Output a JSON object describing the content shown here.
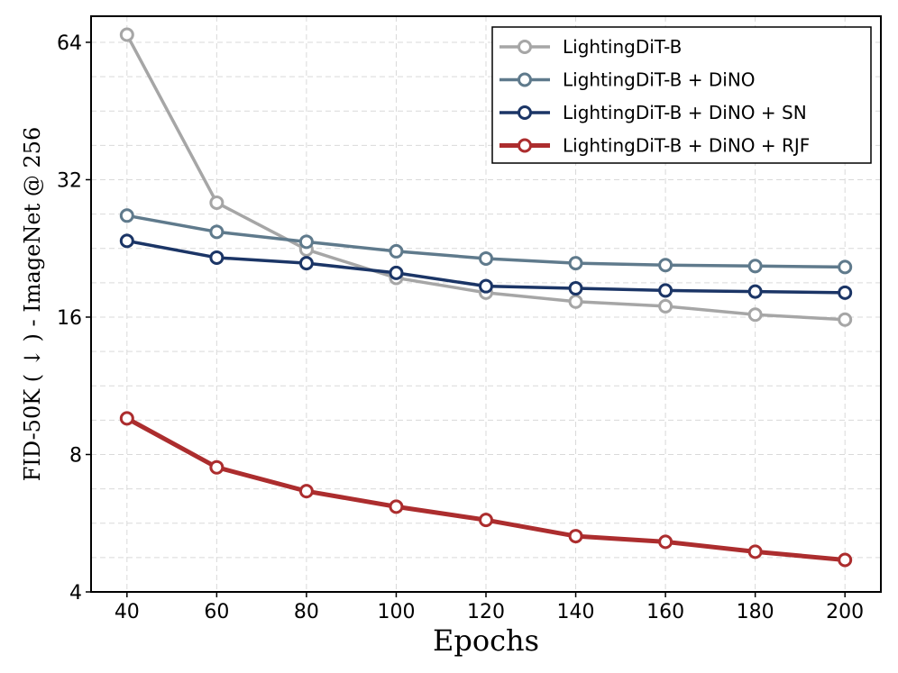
{
  "chart_data": {
    "type": "line",
    "title": "",
    "xlabel": "Epochs",
    "ylabel": "FID-50K ( ↓ ) - ImageNet @ 256",
    "x": [
      40,
      60,
      80,
      100,
      120,
      140,
      160,
      180,
      200
    ],
    "xlim": [
      32,
      208
    ],
    "ylim": [
      4,
      73
    ],
    "yscale": "log2",
    "xticks": [
      40,
      60,
      80,
      100,
      120,
      140,
      160,
      180,
      200
    ],
    "yticks": [
      4,
      8,
      16,
      32,
      64
    ],
    "grid": true,
    "legend_position": "top-right",
    "series": [
      {
        "name": "LightingDiT-B",
        "color": "#a6a6a6",
        "values": [
          66.5,
          28.5,
          22.5,
          19.5,
          18.1,
          17.3,
          16.9,
          16.2,
          15.8
        ]
      },
      {
        "name": "LightingDiT-B + DiNO",
        "color": "#5f7a8c",
        "values": [
          26.7,
          24.6,
          23.4,
          22.3,
          21.5,
          21.0,
          20.8,
          20.7,
          20.6
        ]
      },
      {
        "name": "LightingDiT-B + DiNO + SN",
        "color": "#1b3566",
        "values": [
          23.5,
          21.6,
          21.0,
          20.0,
          18.7,
          18.5,
          18.3,
          18.2,
          18.1
        ]
      },
      {
        "name": "LightingDiT-B + DiNO + RJF",
        "color": "#ac2d2e",
        "values": [
          9.6,
          7.5,
          6.65,
          6.15,
          5.75,
          5.3,
          5.15,
          4.9,
          4.7
        ]
      }
    ]
  }
}
